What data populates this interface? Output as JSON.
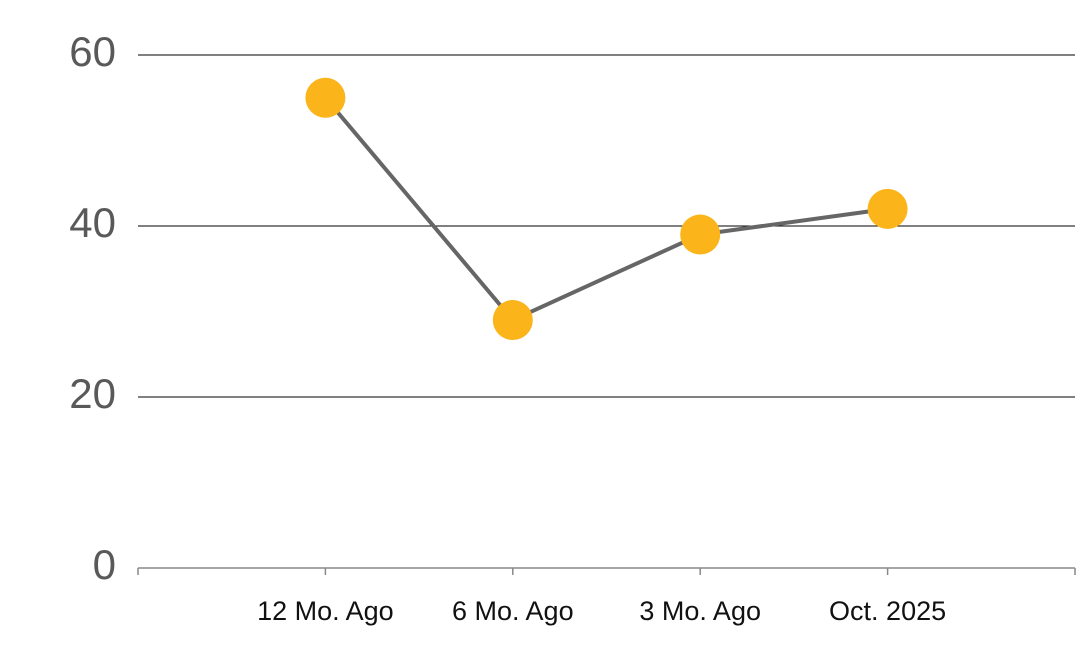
{
  "chart_data": {
    "type": "line",
    "categories": [
      "12 Mo. Ago",
      "6 Mo. Ago",
      "3 Mo. Ago",
      "Oct. 2025"
    ],
    "values": [
      55,
      29,
      39,
      42
    ],
    "line_color": "#666666",
    "marker_color": "#fbb419",
    "ylim": [
      0,
      60
    ],
    "yticks": [
      0,
      20,
      40,
      60
    ],
    "grid": true
  }
}
